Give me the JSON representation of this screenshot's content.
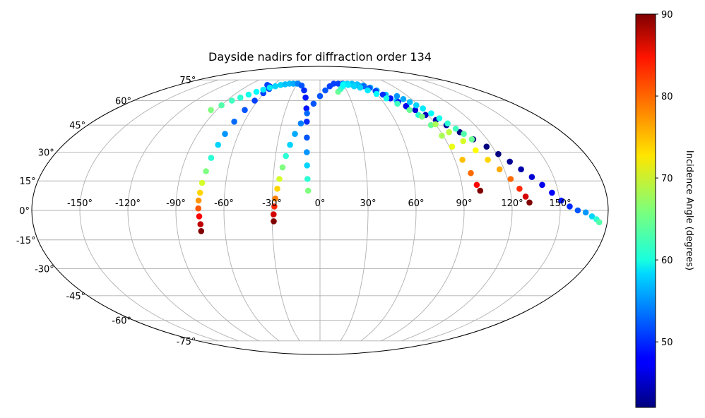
{
  "chart_data": {
    "type": "scatter",
    "projection": "mollweide",
    "title": "Dayside nadirs for diffraction order 134",
    "x_ticks": [
      -150,
      -120,
      -90,
      -60,
      -30,
      0,
      30,
      60,
      90,
      120,
      150
    ],
    "y_ticks": [
      -75,
      -60,
      -45,
      -30,
      -15,
      0,
      15,
      30,
      45,
      60,
      75
    ],
    "x_tick_labels": [
      "-150°",
      "-120°",
      "-90°",
      "-60°",
      "-30°",
      "0°",
      "30°",
      "60°",
      "90°",
      "120°",
      "150°"
    ],
    "y_tick_labels": [
      "-75°",
      "-60°",
      "-45°",
      "-30°",
      "-15°",
      "0°",
      "15°",
      "30°",
      "45°",
      "60°",
      "75°"
    ],
    "grid": true,
    "colorbar": {
      "label": "Incidence Angle (degrees)",
      "colormap": "jet",
      "min": 42,
      "max": 90,
      "ticks": [
        50,
        60,
        70,
        80,
        90
      ],
      "tick_labels": [
        "50",
        "60",
        "70",
        "80",
        "90"
      ],
      "placement": "right"
    },
    "series": [
      {
        "points": [
          [
            -75,
            -10.5,
            90
          ],
          [
            -75,
            -7,
            87
          ],
          [
            -75.5,
            -3,
            84
          ],
          [
            -76,
            1,
            80
          ],
          [
            -76,
            5,
            77
          ],
          [
            -75.5,
            9,
            74
          ],
          [
            -75,
            14,
            70
          ],
          [
            -74,
            20,
            66
          ],
          [
            -73,
            27,
            62
          ],
          [
            -71.5,
            34,
            58
          ],
          [
            -70,
            40,
            55
          ],
          [
            -68,
            47,
            53
          ],
          [
            -65.5,
            54,
            52
          ],
          [
            -63,
            60,
            51
          ],
          [
            -61,
            65,
            51
          ],
          [
            -59,
            68,
            51
          ],
          [
            -62,
            70,
            51
          ],
          [
            -67,
            71,
            51
          ]
        ]
      },
      {
        "points": [
          [
            -95,
            54,
            66
          ],
          [
            -90,
            57,
            64
          ],
          [
            -85,
            60,
            63
          ],
          [
            -80,
            62,
            62
          ],
          [
            -75,
            64,
            61
          ],
          [
            -70,
            66,
            60
          ],
          [
            -65,
            67.5,
            59
          ],
          [
            -60,
            69,
            59
          ],
          [
            -55,
            70,
            58
          ],
          [
            -50,
            71,
            58
          ],
          [
            -45,
            71.5,
            57
          ],
          [
            -40,
            72,
            57
          ],
          [
            -35,
            72,
            57
          ],
          [
            -30,
            72,
            56
          ]
        ]
      },
      {
        "points": [
          [
            -35,
            72,
            56
          ],
          [
            -29,
            72,
            54
          ],
          [
            -23,
            70.5,
            52
          ],
          [
            -18,
            67,
            50
          ],
          [
            -14.5,
            62,
            49
          ],
          [
            -12,
            55,
            49
          ],
          [
            -10.5,
            47,
            50
          ],
          [
            -9.5,
            38,
            52
          ],
          [
            -9,
            30,
            55
          ],
          [
            -8.5,
            23,
            58
          ],
          [
            -8,
            16,
            62
          ],
          [
            -7.5,
            10,
            66
          ]
        ]
      },
      {
        "points": [
          [
            -29,
            -5.5,
            90
          ],
          [
            -29,
            -2,
            86
          ],
          [
            -28.5,
            2,
            82
          ],
          [
            -28,
            6,
            78
          ],
          [
            -27,
            11,
            74
          ],
          [
            -26,
            16,
            70
          ],
          [
            -24.5,
            22,
            66
          ],
          [
            -23,
            28,
            62
          ],
          [
            -21,
            34,
            58
          ],
          [
            -18.5,
            40,
            56
          ],
          [
            -15,
            46,
            54
          ],
          [
            -11,
            52,
            53
          ],
          [
            -6,
            58,
            52
          ],
          [
            0,
            63,
            52
          ],
          [
            6,
            67,
            52
          ],
          [
            12,
            70,
            51
          ],
          [
            18,
            72,
            51
          ],
          [
            24,
            72,
            51
          ],
          [
            30,
            72,
            51
          ],
          [
            36,
            71.5,
            51
          ],
          [
            42,
            71,
            51
          ],
          [
            48,
            70.5,
            51
          ]
        ]
      },
      {
        "points": [
          [
            20,
            66,
            65
          ],
          [
            24,
            68,
            63
          ],
          [
            28,
            70,
            61
          ],
          [
            32,
            71.5,
            59
          ],
          [
            36,
            72,
            58
          ],
          [
            42,
            72,
            57
          ],
          [
            48,
            71.5,
            57
          ],
          [
            54,
            70.5,
            57
          ],
          [
            60,
            69,
            56
          ],
          [
            64,
            67,
            56
          ],
          [
            69,
            64,
            57
          ],
          [
            74,
            60,
            58
          ],
          [
            78,
            56,
            60
          ],
          [
            82,
            51,
            62
          ],
          [
            86,
            45,
            65
          ],
          [
            89,
            39,
            68
          ],
          [
            92,
            33,
            71
          ],
          [
            95,
            26,
            75
          ],
          [
            97.5,
            19,
            79
          ],
          [
            99.5,
            13,
            84
          ],
          [
            101,
            10,
            90
          ]
        ]
      },
      {
        "points": [
          [
            54,
            70,
            53
          ],
          [
            58,
            68.5,
            52
          ],
          [
            62,
            66.5,
            51
          ],
          [
            66,
            64,
            50
          ],
          [
            70,
            61.5,
            49
          ],
          [
            74,
            59,
            48
          ],
          [
            78,
            56.5,
            47
          ],
          [
            83,
            54,
            46
          ],
          [
            88,
            51,
            45
          ],
          [
            93,
            48,
            44
          ],
          [
            98,
            45,
            43
          ],
          [
            104,
            41,
            42
          ],
          [
            110,
            37,
            42
          ],
          [
            116,
            33,
            42
          ],
          [
            121,
            29,
            42
          ],
          [
            126,
            25,
            43
          ],
          [
            131,
            21,
            44
          ],
          [
            136,
            17,
            46
          ],
          [
            141,
            13,
            47
          ],
          [
            146,
            9,
            48
          ],
          [
            151,
            5,
            49
          ],
          [
            156,
            2,
            50
          ],
          [
            161,
            0,
            52
          ],
          [
            166,
            -1,
            55
          ],
          [
            170,
            -3,
            58
          ],
          [
            173,
            -4.5,
            62
          ],
          [
            175,
            -6,
            64
          ]
        ]
      },
      {
        "points": [
          [
            30,
            71.5,
            60
          ],
          [
            36,
            71,
            59
          ],
          [
            42,
            70,
            58
          ],
          [
            48,
            69,
            58
          ],
          [
            54,
            67,
            59
          ],
          [
            60,
            64.5,
            60
          ],
          [
            66,
            61.5,
            61
          ],
          [
            72,
            58,
            63
          ],
          [
            78,
            54,
            65
          ],
          [
            84,
            50,
            66
          ],
          [
            90,
            45.5,
            68
          ],
          [
            96,
            41,
            69
          ],
          [
            102,
            36,
            70
          ],
          [
            107,
            31,
            72
          ],
          [
            112,
            26,
            74
          ],
          [
            117,
            21,
            76
          ],
          [
            122,
            16,
            79
          ],
          [
            126,
            11,
            82
          ],
          [
            129,
            7,
            86
          ],
          [
            131,
            4,
            90
          ]
        ]
      },
      {
        "points": [
          [
            79,
            63,
            55
          ],
          [
            82,
            61,
            56
          ],
          [
            85,
            59,
            57
          ],
          [
            88,
            57,
            58
          ],
          [
            91,
            55,
            59
          ],
          [
            94,
            52,
            60
          ],
          [
            97,
            49,
            61
          ],
          [
            100,
            46,
            62
          ],
          [
            103,
            43,
            63
          ],
          [
            106,
            40,
            64
          ],
          [
            109,
            37,
            65
          ]
        ]
      }
    ]
  }
}
